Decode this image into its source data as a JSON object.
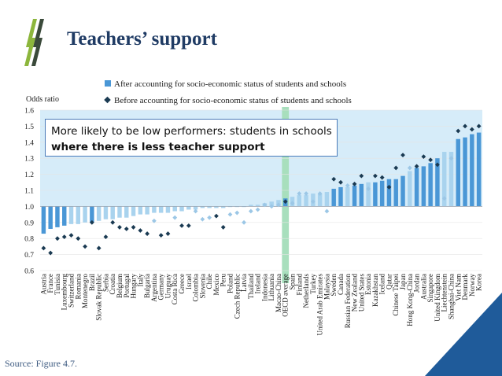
{
  "slide": {
    "title": "Teachers’ support",
    "source": "Source: Figure 4.7.",
    "callout": {
      "line1": "More likely to be low performers: students in schools",
      "line2": "where there is less teacher support"
    }
  },
  "colors": {
    "bar_significant": "#4a97d6",
    "bar_not_significant": "#a9d3ee",
    "marker_significant": "#1a3a52",
    "marker_not_significant": "#9cc7e6",
    "band": "#d6ecf9",
    "oecd_highlight": "#a8dfbd",
    "title": "#1f3b64",
    "logo_light": "#8cb63c",
    "logo_dark": "#3a4a3a",
    "corner": "#1f5b9a"
  },
  "chart_data": {
    "type": "bar",
    "ylabel": "Odds ratio",
    "ylim": [
      0.6,
      1.6
    ],
    "yticks": [
      "0.6",
      "0.7",
      "0.8",
      "0.9",
      "1.0",
      "1.1",
      "1.2",
      "1.3",
      "1.4",
      "1.5",
      "1.6"
    ],
    "ytick_values": [
      0.6,
      0.7,
      0.8,
      0.9,
      1.0,
      1.1,
      1.2,
      1.3,
      1.4,
      1.5,
      1.6
    ],
    "legend": {
      "bar": "After accounting for socio-economic status of students and schools",
      "marker": "Before accounting for socio-economic status of students and schools"
    },
    "highlight_category": "OECD average",
    "categories": [
      "Austria",
      "France",
      "Tunisia",
      "Luxembourg",
      "Switzerland",
      "Romania",
      "Montenegro",
      "Brazil",
      "Slovak Republic",
      "Serbia",
      "Croatia",
      "Belgium",
      "Portugal",
      "Hungary",
      "Italy",
      "Bulgaria",
      "Argentina",
      "Germany",
      "Uruguay",
      "Costa Rica",
      "Greece",
      "Israel",
      "Colombia",
      "Slovenia",
      "Chile",
      "Mexico",
      "Peru",
      "Poland",
      "Czech Republic",
      "Latvia",
      "Thailand",
      "Ireland",
      "Indonesia",
      "Lithuania",
      "Macao-China",
      "OECD average",
      "Spain",
      "Finland",
      "Netherlands",
      "Turkey",
      "United Arab Emirates",
      "Malaysia",
      "Sweden",
      "Canada",
      "Russian Federation",
      "New Zealand",
      "United States",
      "Estonia",
      "Kazakhstan",
      "Iceland",
      "Qatar",
      "Chinese Taipei",
      "Japan",
      "Hong Kong-China",
      "Jordan",
      "Australia",
      "Singapore",
      "United Kingdom",
      "Liechtenstein",
      "Shanghai-China",
      "Viet Nam",
      "Denmark",
      "Norway",
      "Korea"
    ],
    "series": [
      {
        "name": "After accounting for socio-economic status of students and schools",
        "kind": "bar",
        "values": [
          0.83,
          0.86,
          0.87,
          0.88,
          0.89,
          0.89,
          0.9,
          0.9,
          0.91,
          0.92,
          0.92,
          0.93,
          0.93,
          0.94,
          0.95,
          0.95,
          0.96,
          0.96,
          0.96,
          0.97,
          0.97,
          0.98,
          0.98,
          0.99,
          0.99,
          0.99,
          0.99,
          1.0,
          1.0,
          1.0,
          1.01,
          1.01,
          1.02,
          1.03,
          1.04,
          1.05,
          1.06,
          1.07,
          1.07,
          1.08,
          1.08,
          1.09,
          1.11,
          1.12,
          1.12,
          1.13,
          1.14,
          1.15,
          1.15,
          1.16,
          1.17,
          1.17,
          1.19,
          1.22,
          1.24,
          1.25,
          1.27,
          1.3,
          1.34,
          1.34,
          1.42,
          1.43,
          1.45,
          1.46
        ],
        "significant": [
          true,
          true,
          true,
          true,
          false,
          false,
          false,
          true,
          false,
          false,
          false,
          false,
          false,
          false,
          false,
          false,
          false,
          false,
          false,
          false,
          false,
          false,
          false,
          false,
          false,
          false,
          false,
          false,
          false,
          false,
          false,
          false,
          false,
          false,
          false,
          true,
          false,
          false,
          false,
          false,
          false,
          false,
          true,
          true,
          false,
          true,
          true,
          false,
          true,
          true,
          true,
          true,
          true,
          false,
          true,
          true,
          true,
          true,
          false,
          false,
          true,
          true,
          true,
          true
        ]
      },
      {
        "name": "Before accounting for socio-economic status of students and schools",
        "kind": "marker",
        "values": [
          0.74,
          0.71,
          0.8,
          0.81,
          0.82,
          0.8,
          0.75,
          0.9,
          0.74,
          0.81,
          0.9,
          0.87,
          0.86,
          0.87,
          0.85,
          0.83,
          0.91,
          0.82,
          0.83,
          0.93,
          0.88,
          0.88,
          0.97,
          0.92,
          0.93,
          0.94,
          0.87,
          0.95,
          0.96,
          0.9,
          0.97,
          0.98,
          1.01,
          1.0,
          1.01,
          1.03,
          1.02,
          1.08,
          1.08,
          1.03,
          1.08,
          0.97,
          1.17,
          1.15,
          1.13,
          1.14,
          1.19,
          1.11,
          1.19,
          1.18,
          1.12,
          1.24,
          1.32,
          1.24,
          1.25,
          1.31,
          1.29,
          1.26,
          1.05,
          1.3,
          1.47,
          1.5,
          1.48,
          1.5
        ],
        "significant": [
          true,
          true,
          true,
          true,
          true,
          true,
          true,
          true,
          true,
          true,
          true,
          true,
          true,
          true,
          true,
          true,
          false,
          true,
          true,
          false,
          true,
          true,
          false,
          false,
          false,
          true,
          true,
          false,
          false,
          false,
          false,
          false,
          false,
          false,
          false,
          true,
          false,
          false,
          false,
          false,
          false,
          false,
          true,
          true,
          false,
          true,
          true,
          false,
          true,
          true,
          true,
          true,
          true,
          false,
          true,
          true,
          true,
          true,
          false,
          false,
          true,
          true,
          true,
          true
        ]
      }
    ]
  }
}
